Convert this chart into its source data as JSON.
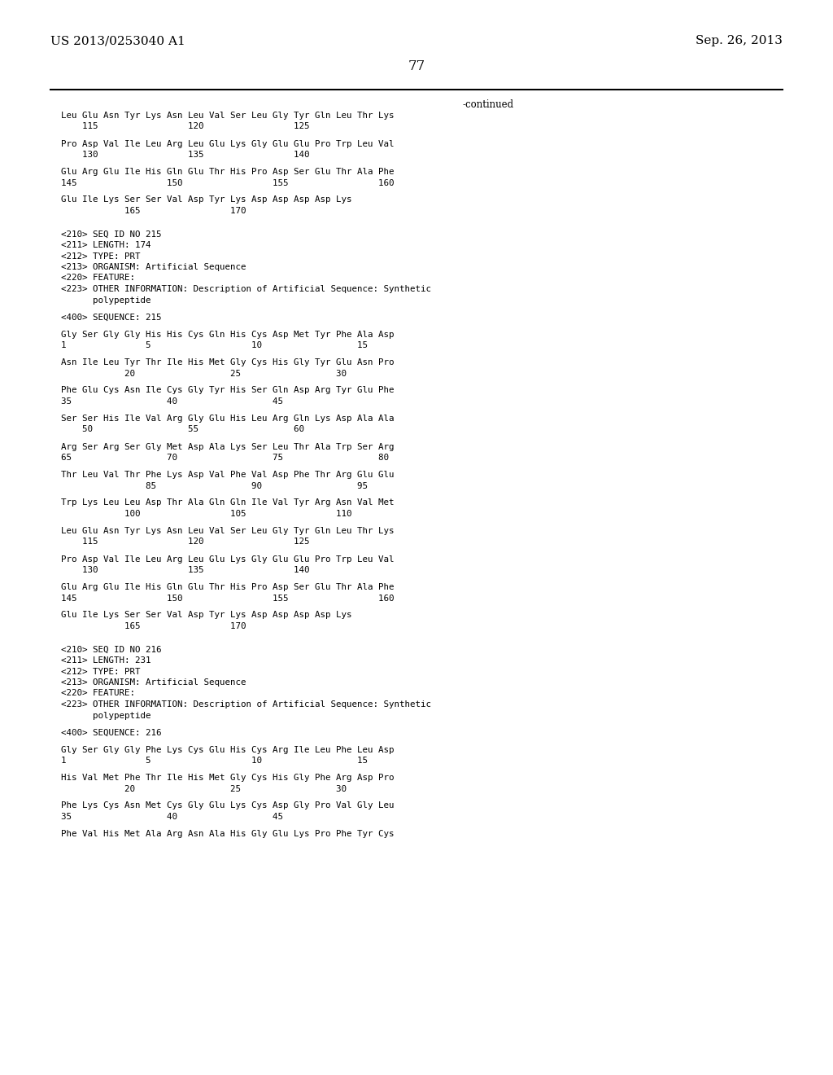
{
  "left_header": "US 2013/0253040 A1",
  "right_header": "Sep. 26, 2013",
  "page_number": "77",
  "continued_label": "-continued",
  "background_color": "#ffffff",
  "text_color": "#000000",
  "lines": [
    {
      "text": "Leu Glu Asn Tyr Lys Asn Leu Val Ser Leu Gly Tyr Gln Leu Thr Lys",
      "type": "seq"
    },
    {
      "text": "    115                 120                 125",
      "type": "num"
    },
    {
      "text": "",
      "type": "blank"
    },
    {
      "text": "Pro Asp Val Ile Leu Arg Leu Glu Lys Gly Glu Glu Pro Trp Leu Val",
      "type": "seq"
    },
    {
      "text": "    130                 135                 140",
      "type": "num"
    },
    {
      "text": "",
      "type": "blank"
    },
    {
      "text": "Glu Arg Glu Ile His Gln Glu Thr His Pro Asp Ser Glu Thr Ala Phe",
      "type": "seq"
    },
    {
      "text": "145                 150                 155                 160",
      "type": "num"
    },
    {
      "text": "",
      "type": "blank"
    },
    {
      "text": "Glu Ile Lys Ser Ser Val Asp Tyr Lys Asp Asp Asp Asp Lys",
      "type": "seq"
    },
    {
      "text": "            165                 170",
      "type": "num"
    },
    {
      "text": "",
      "type": "blank"
    },
    {
      "text": "",
      "type": "blank"
    },
    {
      "text": "<210> SEQ ID NO 215",
      "type": "meta"
    },
    {
      "text": "<211> LENGTH: 174",
      "type": "meta"
    },
    {
      "text": "<212> TYPE: PRT",
      "type": "meta"
    },
    {
      "text": "<213> ORGANISM: Artificial Sequence",
      "type": "meta"
    },
    {
      "text": "<220> FEATURE:",
      "type": "meta"
    },
    {
      "text": "<223> OTHER INFORMATION: Description of Artificial Sequence: Synthetic",
      "type": "meta"
    },
    {
      "text": "      polypeptide",
      "type": "meta"
    },
    {
      "text": "",
      "type": "blank"
    },
    {
      "text": "<400> SEQUENCE: 215",
      "type": "meta"
    },
    {
      "text": "",
      "type": "blank"
    },
    {
      "text": "Gly Ser Gly Gly His His Cys Gln His Cys Asp Met Tyr Phe Ala Asp",
      "type": "seq"
    },
    {
      "text": "1               5                   10                  15",
      "type": "num"
    },
    {
      "text": "",
      "type": "blank"
    },
    {
      "text": "Asn Ile Leu Tyr Thr Ile His Met Gly Cys His Gly Tyr Glu Asn Pro",
      "type": "seq"
    },
    {
      "text": "            20                  25                  30",
      "type": "num"
    },
    {
      "text": "",
      "type": "blank"
    },
    {
      "text": "Phe Glu Cys Asn Ile Cys Gly Tyr His Ser Gln Asp Arg Tyr Glu Phe",
      "type": "seq"
    },
    {
      "text": "35                  40                  45",
      "type": "num"
    },
    {
      "text": "",
      "type": "blank"
    },
    {
      "text": "Ser Ser His Ile Val Arg Gly Glu His Leu Arg Gln Lys Asp Ala Ala",
      "type": "seq"
    },
    {
      "text": "    50                  55                  60",
      "type": "num"
    },
    {
      "text": "",
      "type": "blank"
    },
    {
      "text": "Arg Ser Arg Ser Gly Met Asp Ala Lys Ser Leu Thr Ala Trp Ser Arg",
      "type": "seq"
    },
    {
      "text": "65                  70                  75                  80",
      "type": "num"
    },
    {
      "text": "",
      "type": "blank"
    },
    {
      "text": "Thr Leu Val Thr Phe Lys Asp Val Phe Val Asp Phe Thr Arg Glu Glu",
      "type": "seq"
    },
    {
      "text": "                85                  90                  95",
      "type": "num"
    },
    {
      "text": "",
      "type": "blank"
    },
    {
      "text": "Trp Lys Leu Leu Asp Thr Ala Gln Gln Ile Val Tyr Arg Asn Val Met",
      "type": "seq"
    },
    {
      "text": "            100                 105                 110",
      "type": "num"
    },
    {
      "text": "",
      "type": "blank"
    },
    {
      "text": "Leu Glu Asn Tyr Lys Asn Leu Val Ser Leu Gly Tyr Gln Leu Thr Lys",
      "type": "seq"
    },
    {
      "text": "    115                 120                 125",
      "type": "num"
    },
    {
      "text": "",
      "type": "blank"
    },
    {
      "text": "Pro Asp Val Ile Leu Arg Leu Glu Lys Gly Glu Glu Pro Trp Leu Val",
      "type": "seq"
    },
    {
      "text": "    130                 135                 140",
      "type": "num"
    },
    {
      "text": "",
      "type": "blank"
    },
    {
      "text": "Glu Arg Glu Ile His Gln Glu Thr His Pro Asp Ser Glu Thr Ala Phe",
      "type": "seq"
    },
    {
      "text": "145                 150                 155                 160",
      "type": "num"
    },
    {
      "text": "",
      "type": "blank"
    },
    {
      "text": "Glu Ile Lys Ser Ser Val Asp Tyr Lys Asp Asp Asp Asp Lys",
      "type": "seq"
    },
    {
      "text": "            165                 170",
      "type": "num"
    },
    {
      "text": "",
      "type": "blank"
    },
    {
      "text": "",
      "type": "blank"
    },
    {
      "text": "<210> SEQ ID NO 216",
      "type": "meta"
    },
    {
      "text": "<211> LENGTH: 231",
      "type": "meta"
    },
    {
      "text": "<212> TYPE: PRT",
      "type": "meta"
    },
    {
      "text": "<213> ORGANISM: Artificial Sequence",
      "type": "meta"
    },
    {
      "text": "<220> FEATURE:",
      "type": "meta"
    },
    {
      "text": "<223> OTHER INFORMATION: Description of Artificial Sequence: Synthetic",
      "type": "meta"
    },
    {
      "text": "      polypeptide",
      "type": "meta"
    },
    {
      "text": "",
      "type": "blank"
    },
    {
      "text": "<400> SEQUENCE: 216",
      "type": "meta"
    },
    {
      "text": "",
      "type": "blank"
    },
    {
      "text": "Gly Ser Gly Gly Phe Lys Cys Glu His Cys Arg Ile Leu Phe Leu Asp",
      "type": "seq"
    },
    {
      "text": "1               5                   10                  15",
      "type": "num"
    },
    {
      "text": "",
      "type": "blank"
    },
    {
      "text": "His Val Met Phe Thr Ile His Met Gly Cys His Gly Phe Arg Asp Pro",
      "type": "seq"
    },
    {
      "text": "            20                  25                  30",
      "type": "num"
    },
    {
      "text": "",
      "type": "blank"
    },
    {
      "text": "Phe Lys Cys Asn Met Cys Gly Glu Lys Cys Asp Gly Pro Val Gly Leu",
      "type": "seq"
    },
    {
      "text": "35                  40                  45",
      "type": "num"
    },
    {
      "text": "",
      "type": "blank"
    },
    {
      "text": "Phe Val His Met Ala Arg Asn Ala His Gly Glu Lys Pro Phe Tyr Cys",
      "type": "seq"
    }
  ]
}
